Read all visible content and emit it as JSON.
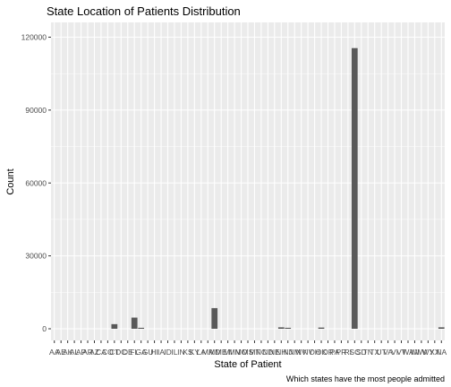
{
  "chart_data": {
    "type": "bar",
    "title": "State Location of Patients Distribution",
    "xlabel": "State of Patient",
    "ylabel": "Count",
    "caption": "Which states have the most people admitted",
    "ylim": [
      0,
      122000
    ],
    "yticks": [
      0,
      30000,
      60000,
      90000,
      120000
    ],
    "ytick_labels": [
      "0",
      "30000",
      "60000",
      "90000",
      "120000"
    ],
    "grid": true,
    "bar_color": "#595959",
    "panel_bg": "#ebebeb",
    "grid_color": "#ffffff",
    "categories": [
      "AA",
      "AE",
      "AK",
      "AL",
      "AP",
      "AR",
      "AZ",
      "CA",
      "CO",
      "CT",
      "DC",
      "DE",
      "FL",
      "GA",
      "GU",
      "HI",
      "IA",
      "ID",
      "IL",
      "IN",
      "KS",
      "KY",
      "LA",
      "MA",
      "MD",
      "ME",
      "MI",
      "MN",
      "MO",
      "MS",
      "MT",
      "NC",
      "ND",
      "NE",
      "NH",
      "NJ",
      "NM",
      "NV",
      "NY",
      "OH",
      "OK",
      "OR",
      "PA",
      "PR",
      "RI",
      "SC",
      "SD",
      "TN",
      "TX",
      "UT",
      "VA",
      "VI",
      "VT",
      "WA",
      "WI",
      "WV",
      "WY",
      "XX",
      "NA"
    ],
    "values": [
      0,
      0,
      0,
      0,
      0,
      0,
      0,
      0,
      0,
      1900,
      0,
      0,
      4600,
      400,
      0,
      0,
      0,
      0,
      0,
      0,
      0,
      0,
      0,
      0,
      8500,
      0,
      0,
      0,
      0,
      0,
      0,
      0,
      0,
      0,
      600,
      400,
      0,
      0,
      0,
      0,
      500,
      0,
      0,
      0,
      0,
      115500,
      0,
      0,
      0,
      0,
      0,
      0,
      0,
      0,
      0,
      0,
      0,
      0,
      600
    ]
  }
}
